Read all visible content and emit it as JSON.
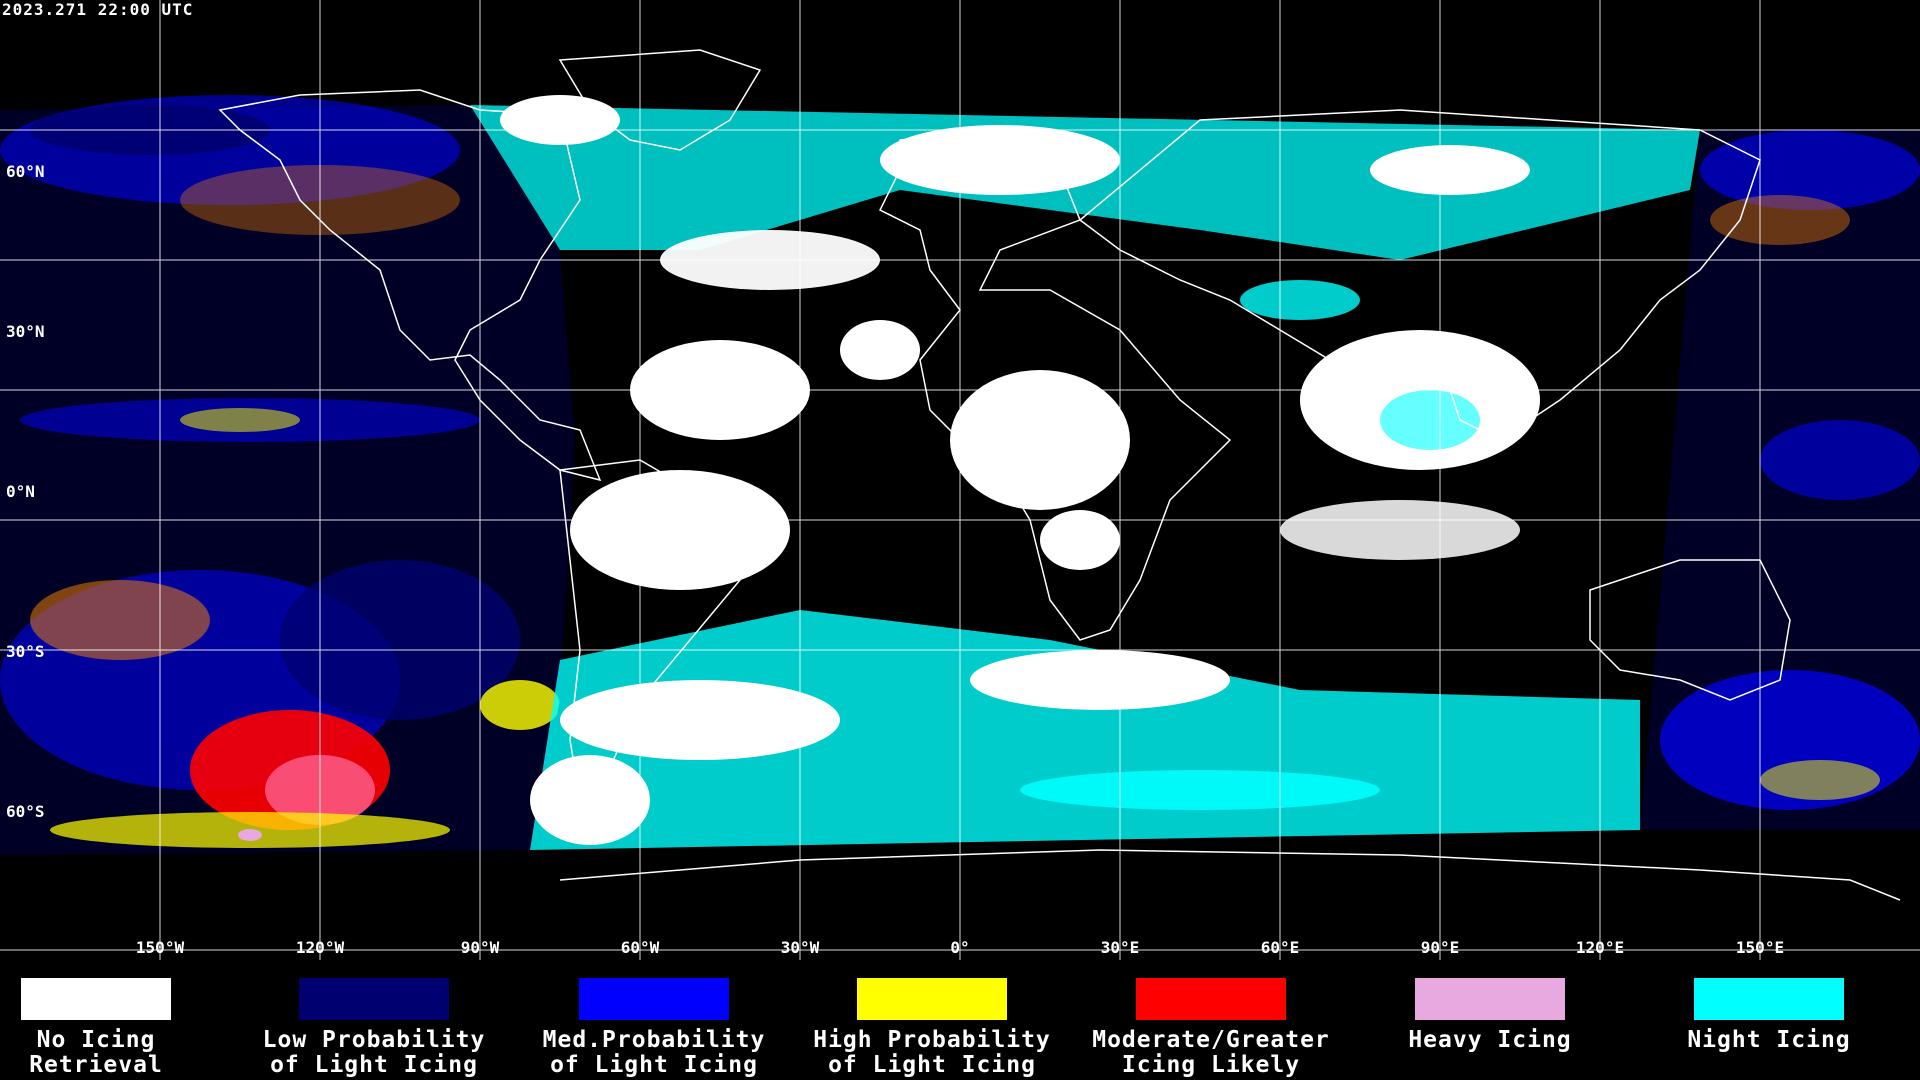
{
  "timestamp": "2023.271 22:00 UTC",
  "colors": {
    "background": "#000000",
    "grid": "#ffffff",
    "coast": "#ffffff",
    "no_icing": "#ffffff",
    "low_prob": "#000070",
    "med_prob": "#0000ff",
    "high_prob": "#ffff00",
    "moderate": "#ff0000",
    "heavy": "#e8a8e0",
    "night": "#00ffff"
  },
  "lat_labels": [
    "60°N",
    "30°N",
    "0°N",
    "30°S",
    "60°S"
  ],
  "lon_labels": [
    "150°W",
    "120°W",
    "90°W",
    "60°W",
    "30°W",
    "0°",
    "30°E",
    "60°E",
    "90°E",
    "120°E",
    "150°E"
  ],
  "legend": [
    {
      "line1": "No Icing",
      "line2": "Retrieval",
      "color": "#ffffff"
    },
    {
      "line1": "Low Probability",
      "line2": "of Light Icing",
      "color": "#000070"
    },
    {
      "line1": "Med.Probability",
      "line2": "of Light Icing",
      "color": "#0000ff"
    },
    {
      "line1": "High Probability",
      "line2": "of Light Icing",
      "color": "#ffff00"
    },
    {
      "line1": "Moderate/Greater",
      "line2": "Icing Likely",
      "color": "#ff0000"
    },
    {
      "line1": "Heavy Icing",
      "line2": "",
      "color": "#e8a8e0"
    },
    {
      "line1": "Night Icing",
      "line2": "",
      "color": "#00ffff"
    }
  ]
}
